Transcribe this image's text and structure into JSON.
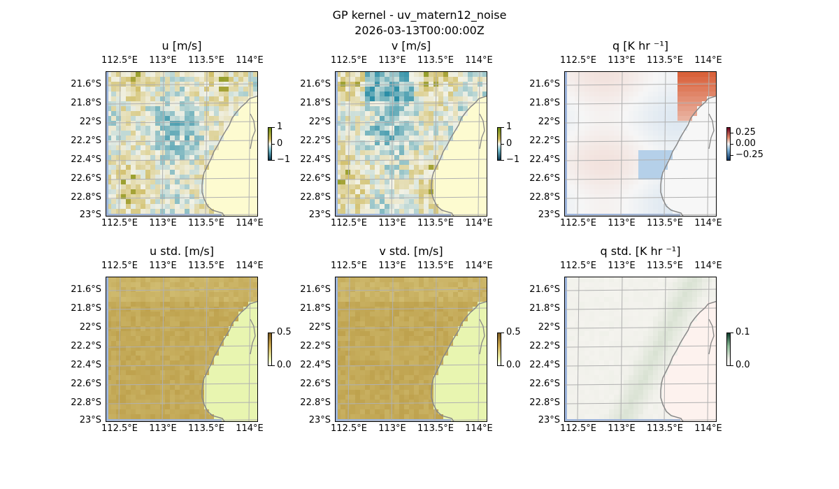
{
  "figure": {
    "title": "GP kernel - uv_matern12_noise",
    "subtitle": "2026-03-13T00:00:00Z"
  },
  "axes": {
    "lon_ticks": [
      "112.5°E",
      "113°E",
      "113.5°E",
      "114°E"
    ],
    "lat_ticks": [
      "21.6°S",
      "21.8°S",
      "22°S",
      "22.2°S",
      "22.4°S",
      "22.6°S",
      "22.8°S",
      "23°S"
    ]
  },
  "panels": [
    {
      "id": "u",
      "title": "u [m/s]",
      "colorbar": [
        "1",
        "0",
        "−1"
      ],
      "colormap": "brown-white-teal",
      "field": "noise",
      "land_color": "#fdfbd0",
      "accent": "#8a9a1a"
    },
    {
      "id": "v",
      "title": "v [m/s]",
      "colorbar": [
        "1",
        "0",
        "−1"
      ],
      "colormap": "brown-white-teal",
      "field": "noise",
      "land_color": "#fdfbd0",
      "accent": "#2a8aa0"
    },
    {
      "id": "q",
      "title": "q [K hr ⁻¹]",
      "colorbar": [
        "0.25",
        "0.00",
        "−0.25"
      ],
      "colormap": "red-white-blue",
      "field": "smooth",
      "land_color": "#f7f7f7",
      "accent": "#d8603a"
    },
    {
      "id": "ustd",
      "title": "u std. [m/s]",
      "colorbar": [
        "0.5",
        "0.0"
      ],
      "colormap": "tan-yellowgreen",
      "field": "std",
      "land_color": "#e8f5b0",
      "accent": "#c1a24e"
    },
    {
      "id": "vstd",
      "title": "v std. [m/s]",
      "colorbar": [
        "0.5",
        "0.0"
      ],
      "colormap": "tan-yellowgreen",
      "field": "std",
      "land_color": "#e8f5b0",
      "accent": "#c1a24e"
    },
    {
      "id": "qstd",
      "title": "q std. [K hr ⁻¹]",
      "colorbar": [
        "0.1",
        "0.0"
      ],
      "colormap": "grey-green-pink",
      "field": "stdq",
      "land_color": "#fdf2ee",
      "accent": "#bfcfb8"
    }
  ],
  "colors": {
    "ocean_edge": "#9db5dd",
    "coastline": "#888888",
    "gridline": "#b0b0b0"
  }
}
